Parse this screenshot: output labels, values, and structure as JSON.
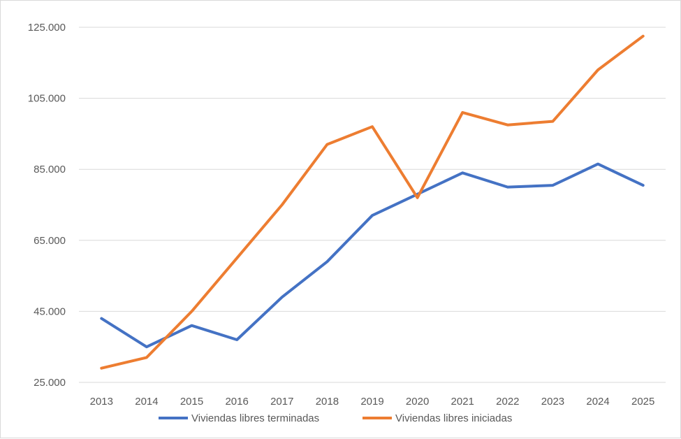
{
  "chart_data": {
    "type": "line",
    "title": "",
    "xlabel": "",
    "ylabel": "",
    "categories": [
      "2013",
      "2014",
      "2015",
      "2016",
      "2017",
      "2018",
      "2019",
      "2020",
      "2021",
      "2022",
      "2023",
      "2024",
      "2025"
    ],
    "ylim": [
      25000,
      125000
    ],
    "yticks": [
      25000,
      45000,
      65000,
      85000,
      105000,
      125000
    ],
    "ytick_labels": [
      "25.000",
      "45.000",
      "65.000",
      "85.000",
      "105.000",
      "125.000"
    ],
    "grid": true,
    "legend_position": "bottom",
    "series": [
      {
        "name": "Viviendas libres terminadas",
        "color": "#4472c4",
        "values": [
          43000,
          35000,
          41000,
          37000,
          49000,
          59000,
          72000,
          78000,
          84000,
          80000,
          80500,
          86500,
          80500
        ]
      },
      {
        "name": "Viviendas libres iniciadas",
        "color": "#ed7d31",
        "values": [
          29000,
          32000,
          45000,
          60000,
          75000,
          92000,
          97000,
          77000,
          101000,
          97500,
          98500,
          113000,
          122500
        ]
      }
    ]
  }
}
